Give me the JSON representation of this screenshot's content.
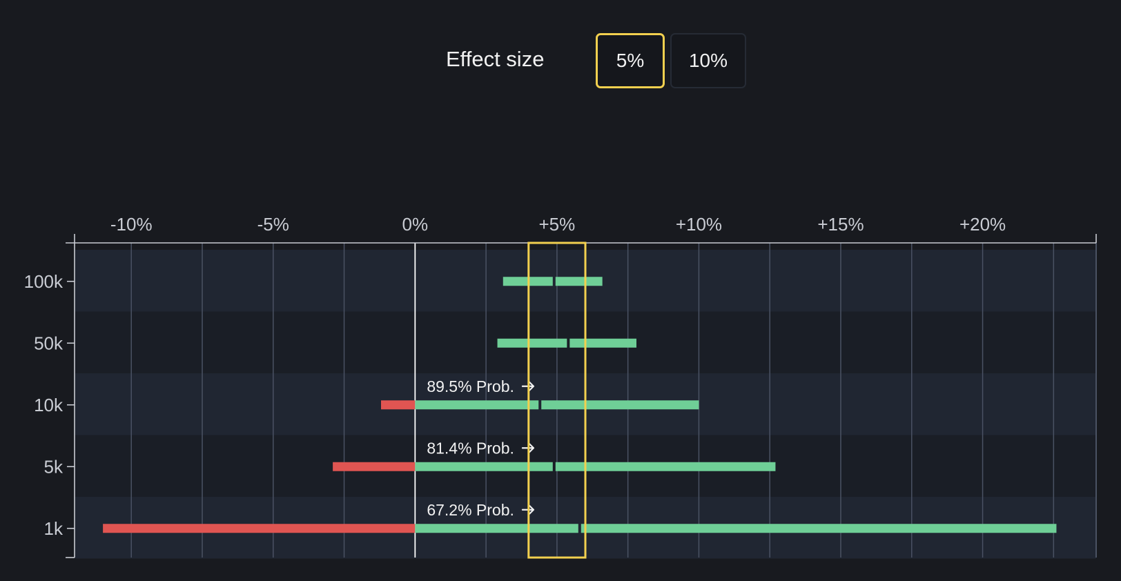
{
  "controls": {
    "label": "Effect size",
    "options": [
      "5%",
      "10%"
    ],
    "selected": "5%"
  },
  "colors": {
    "background": "#181a1f",
    "band_light": "#202632",
    "band_dark": "#1a1e26",
    "grid": "#4a5263",
    "axis": "#c9ccd3",
    "zero_line": "#ffffff",
    "positive": "#6fcf97",
    "negative": "#e05552",
    "highlight": "#f2d04f",
    "text": "#f2f2f2"
  },
  "chart_data": {
    "type": "interval",
    "title": "",
    "xlabel": "",
    "ylabel": "",
    "xlim": [
      -12,
      24
    ],
    "x_ticks": [
      -10,
      -5,
      0,
      5,
      10,
      15,
      20
    ],
    "x_tick_labels": [
      "-10%",
      "-5%",
      "0%",
      "+5%",
      "+10%",
      "+15%",
      "+20%"
    ],
    "highlight_range": [
      4,
      6
    ],
    "rows": [
      {
        "label": "100k",
        "low": 3.1,
        "mid": 4.9,
        "high": 6.6,
        "annotation": ""
      },
      {
        "label": "50k",
        "low": 2.9,
        "mid": 5.4,
        "high": 7.8,
        "annotation": ""
      },
      {
        "label": "10k",
        "low": -1.2,
        "mid": 4.4,
        "high": 10.0,
        "annotation": "89.5% Prob."
      },
      {
        "label": "5k",
        "low": -2.9,
        "mid": 4.9,
        "high": 12.7,
        "annotation": "81.4% Prob."
      },
      {
        "label": "1k",
        "low": -11.0,
        "mid": 5.8,
        "high": 22.6,
        "annotation": "67.2% Prob."
      }
    ]
  }
}
